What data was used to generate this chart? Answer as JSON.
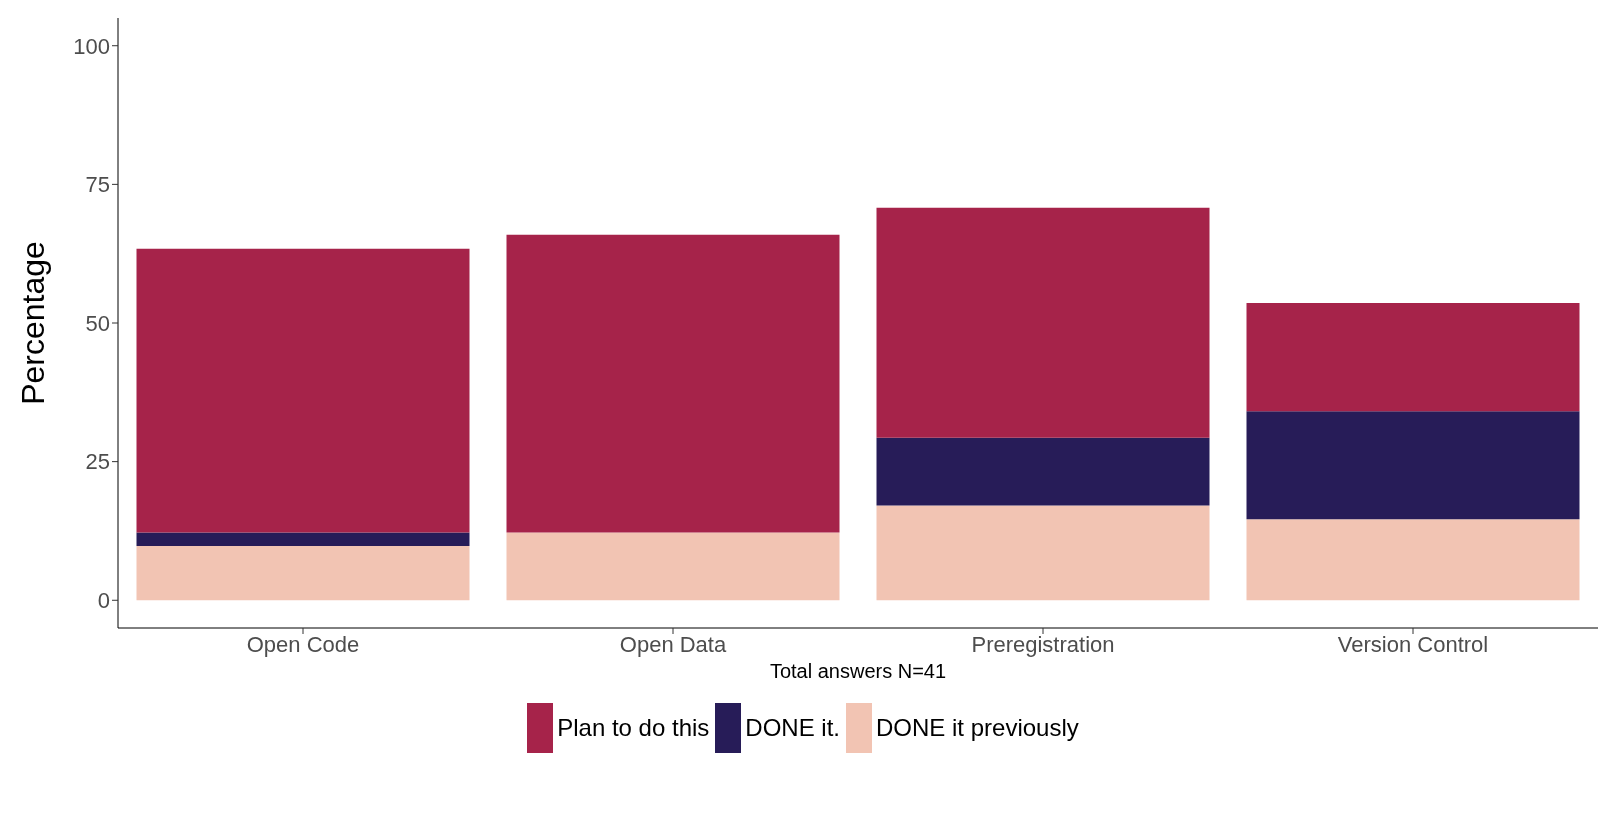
{
  "chart_data": {
    "type": "bar",
    "stacked": true,
    "ylabel": "Percentage",
    "categories": [
      "Open Code",
      "Open Data",
      "Preregistration",
      "Version Control"
    ],
    "series": [
      {
        "name": "DONE it previously",
        "color": "#f2c4b3",
        "values": [
          9.8,
          12.2,
          17.1,
          14.6
        ]
      },
      {
        "name": "DONE it.",
        "color": "#271c58",
        "values": [
          2.4,
          0,
          12.2,
          19.5
        ]
      },
      {
        "name": "Plan to do this",
        "color": "#a6234a",
        "values": [
          51.2,
          53.7,
          41.5,
          19.5
        ]
      }
    ],
    "ylim": [
      -5,
      105
    ],
    "yticks": [
      0,
      25,
      50,
      75,
      100
    ],
    "grid": false,
    "legend": "bottom",
    "annotations": [
      "Total answers N=41"
    ]
  }
}
